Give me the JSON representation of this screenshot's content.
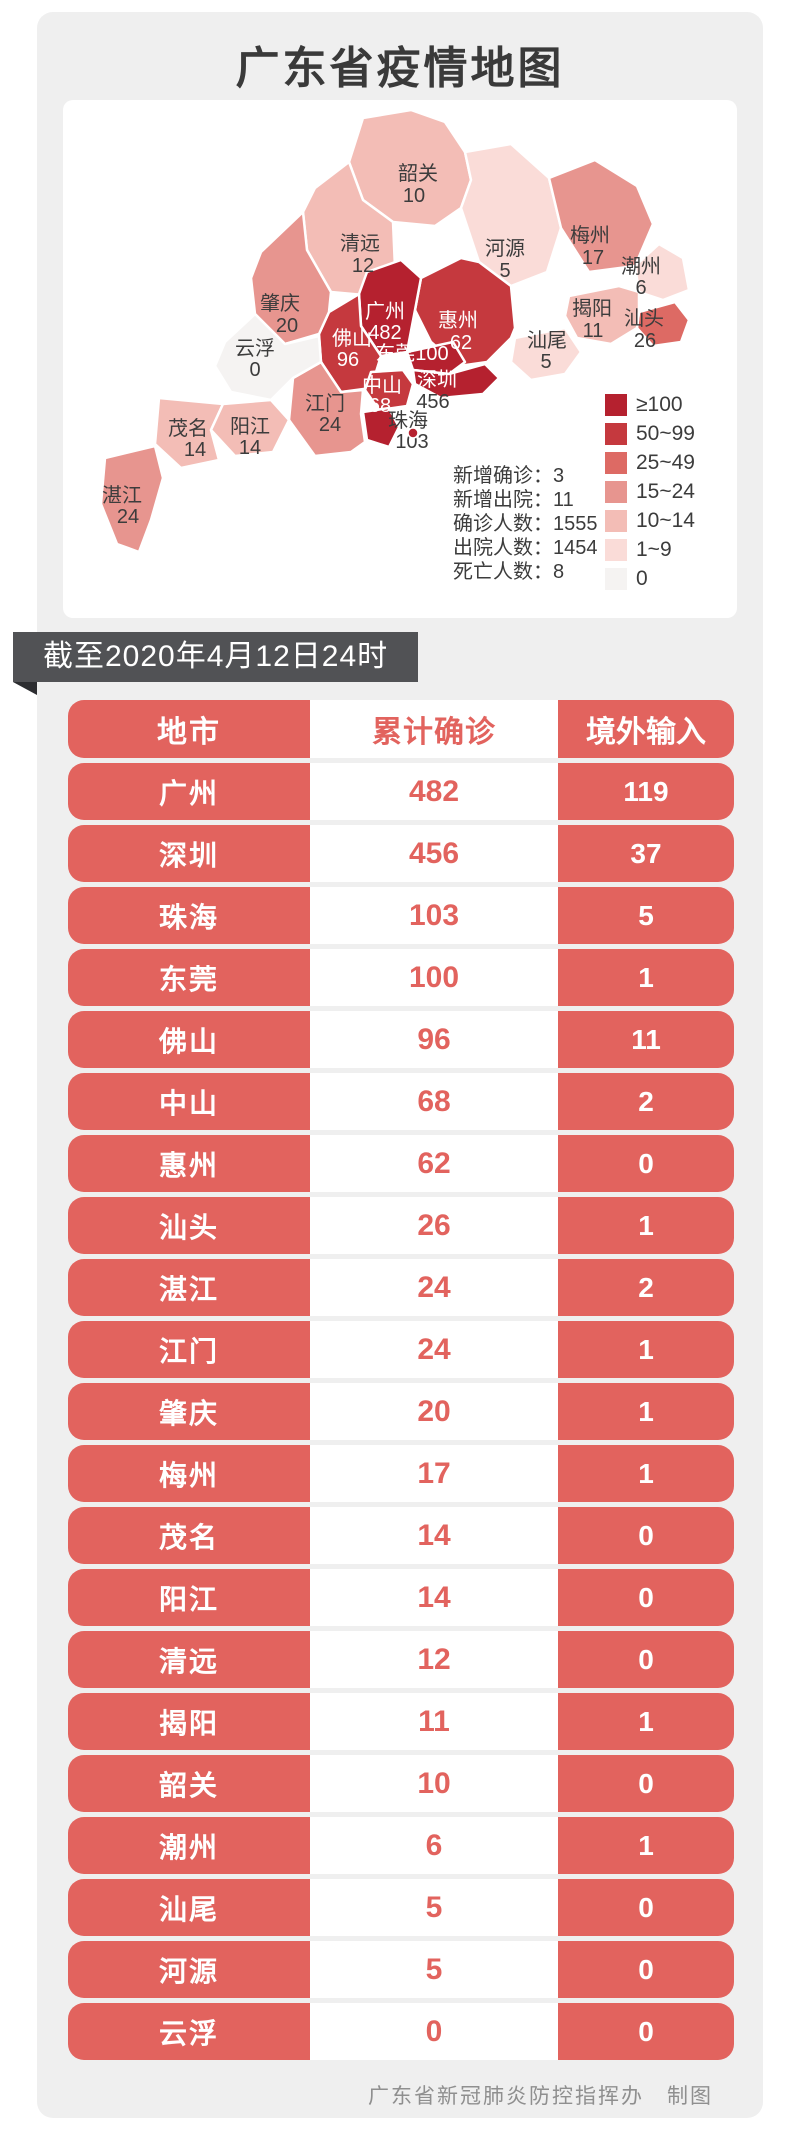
{
  "title": "广东省疫情地图",
  "date_banner": "截至2020年4月12日24时",
  "footer": "广东省新冠肺炎防控指挥办　制图",
  "map": {
    "legend": [
      {
        "label": "≥100",
        "color": "#b5212f"
      },
      {
        "label": "50~99",
        "color": "#c5393e"
      },
      {
        "label": "25~49",
        "color": "#dd6a64"
      },
      {
        "label": "15~24",
        "color": "#e7958f"
      },
      {
        "label": "10~14",
        "color": "#f3bdb6"
      },
      {
        "label": "1~9",
        "color": "#fadcd8"
      },
      {
        "label": "0",
        "color": "#f5f3f2"
      }
    ],
    "stats": [
      {
        "label": "新增确诊",
        "value": "3"
      },
      {
        "label": "新增出院",
        "value": "11"
      },
      {
        "label": "确诊人数",
        "value": "1555"
      },
      {
        "label": "出院人数",
        "value": "1454"
      },
      {
        "label": "死亡人数",
        "value": "8"
      }
    ],
    "regions": [
      {
        "name": "韶关",
        "value": "10",
        "bucket": 4
      },
      {
        "name": "清远",
        "value": "12",
        "bucket": 4
      },
      {
        "name": "河源",
        "value": "5",
        "bucket": 5
      },
      {
        "name": "梅州",
        "value": "17",
        "bucket": 3
      },
      {
        "name": "潮州",
        "value": "6",
        "bucket": 5
      },
      {
        "name": "汕头",
        "value": "26",
        "bucket": 2
      },
      {
        "name": "揭阳",
        "value": "11",
        "bucket": 4
      },
      {
        "name": "汕尾",
        "value": "5",
        "bucket": 5
      },
      {
        "name": "惠州",
        "value": "62",
        "bucket": 1
      },
      {
        "name": "广州",
        "value": "482",
        "bucket": 0
      },
      {
        "name": "东莞",
        "value": "100",
        "bucket": 0
      },
      {
        "name": "深圳",
        "value": "456",
        "bucket": 0
      },
      {
        "name": "佛山",
        "value": "96",
        "bucket": 1
      },
      {
        "name": "中山",
        "value": "68",
        "bucket": 1
      },
      {
        "name": "珠海",
        "value": "103",
        "bucket": 0
      },
      {
        "name": "江门",
        "value": "24",
        "bucket": 3
      },
      {
        "name": "肇庆",
        "value": "20",
        "bucket": 3
      },
      {
        "name": "云浮",
        "value": "0",
        "bucket": 6
      },
      {
        "name": "茂名",
        "value": "14",
        "bucket": 4
      },
      {
        "name": "阳江",
        "value": "14",
        "bucket": 4
      },
      {
        "name": "湛江",
        "value": "24",
        "bucket": 3
      }
    ]
  },
  "table": {
    "headers": [
      "地市",
      "累计确诊",
      "境外输入"
    ],
    "rows": [
      [
        "广州",
        "482",
        "119"
      ],
      [
        "深圳",
        "456",
        "37"
      ],
      [
        "珠海",
        "103",
        "5"
      ],
      [
        "东莞",
        "100",
        "1"
      ],
      [
        "佛山",
        "96",
        "11"
      ],
      [
        "中山",
        "68",
        "2"
      ],
      [
        "惠州",
        "62",
        "0"
      ],
      [
        "汕头",
        "26",
        "1"
      ],
      [
        "湛江",
        "24",
        "2"
      ],
      [
        "江门",
        "24",
        "1"
      ],
      [
        "肇庆",
        "20",
        "1"
      ],
      [
        "梅州",
        "17",
        "1"
      ],
      [
        "茂名",
        "14",
        "0"
      ],
      [
        "阳江",
        "14",
        "0"
      ],
      [
        "清远",
        "12",
        "0"
      ],
      [
        "揭阳",
        "11",
        "1"
      ],
      [
        "韶关",
        "10",
        "0"
      ],
      [
        "潮州",
        "6",
        "1"
      ],
      [
        "汕尾",
        "5",
        "0"
      ],
      [
        "河源",
        "5",
        "0"
      ],
      [
        "云浮",
        "0",
        "0"
      ]
    ]
  }
}
